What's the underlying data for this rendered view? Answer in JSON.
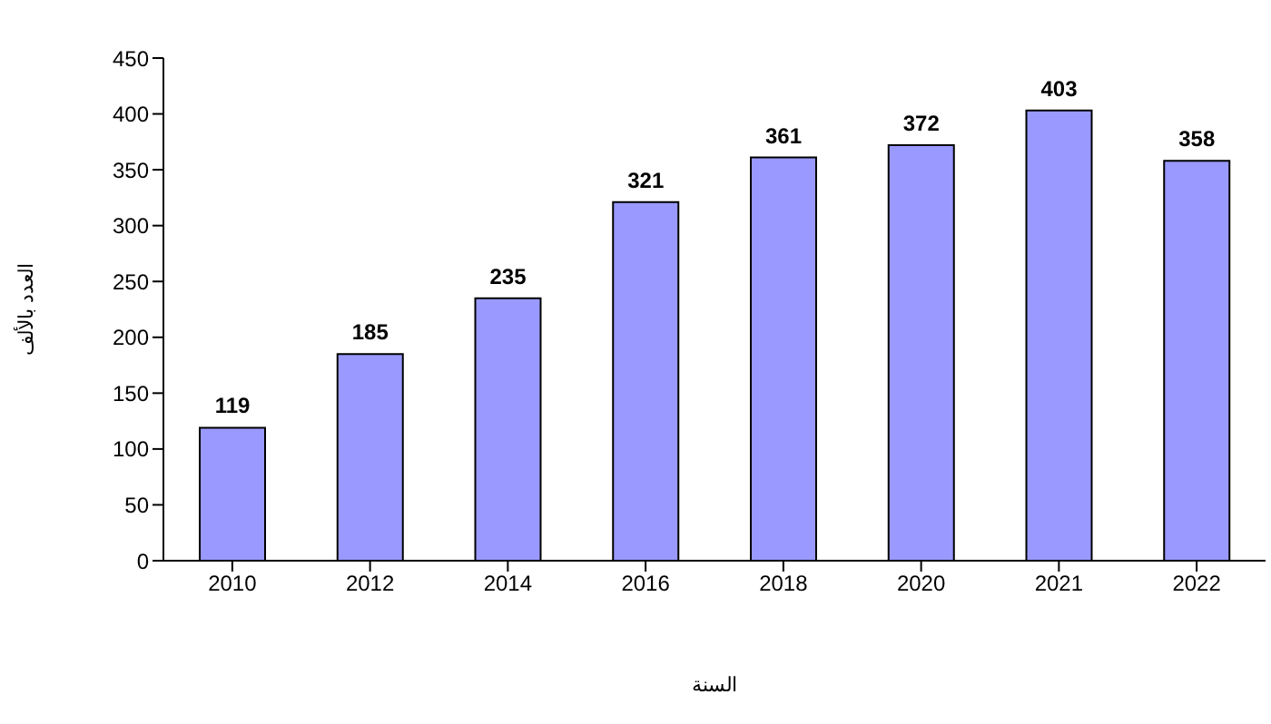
{
  "chart_data": {
    "type": "bar",
    "xlabel": "السنة",
    "ylabel": "العدد بالألف",
    "categories": [
      "2010",
      "2012",
      "2014",
      "2016",
      "2018",
      "2020",
      "2021",
      "2022"
    ],
    "values": [
      119,
      185,
      235,
      321,
      361,
      372,
      403,
      358
    ],
    "color": "#9999ff",
    "ylim": [
      0,
      450
    ],
    "yticks": [
      0,
      50,
      100,
      150,
      200,
      250,
      300,
      350,
      400,
      450
    ],
    "grid": false,
    "data_labels": true
  }
}
